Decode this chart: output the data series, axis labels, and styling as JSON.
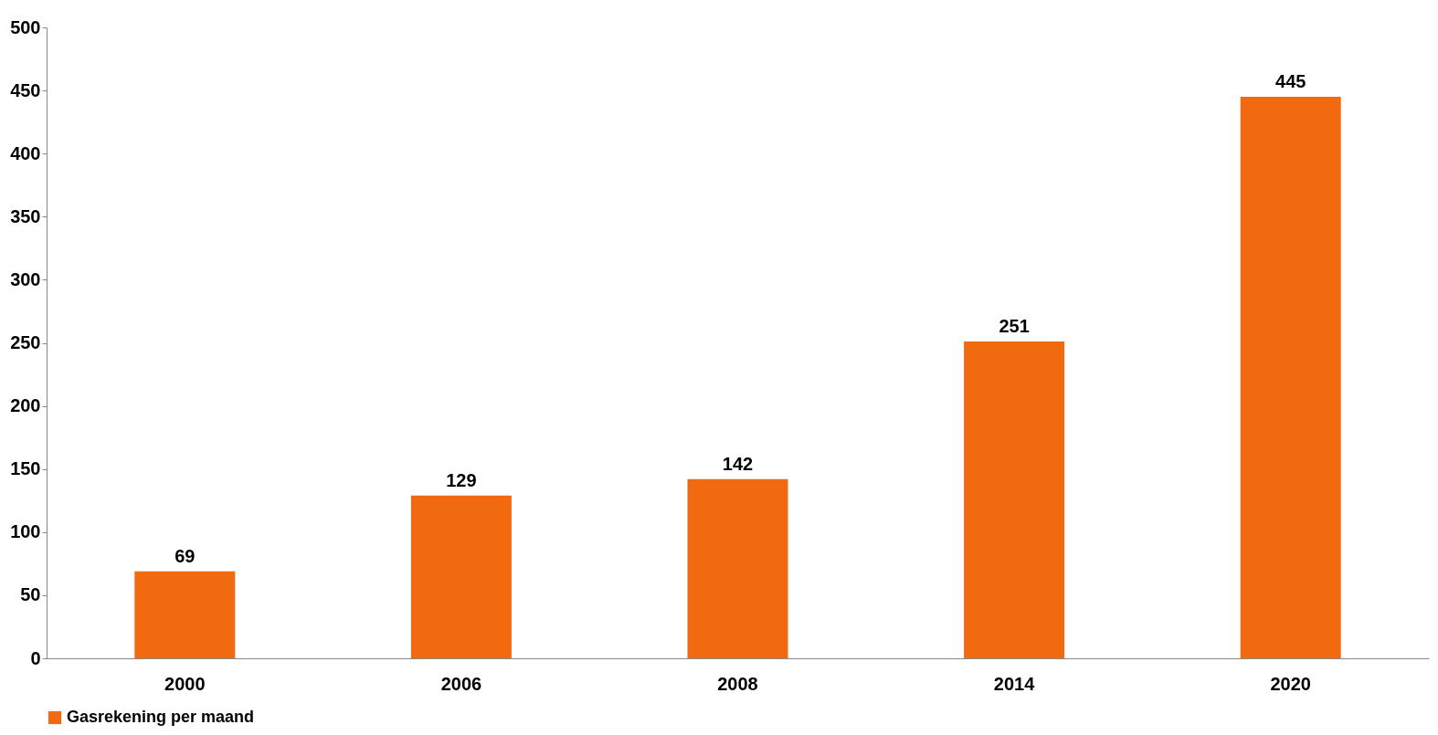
{
  "chart_data": {
    "type": "bar",
    "categories": [
      "2000",
      "2006",
      "2008",
      "2014",
      "2020"
    ],
    "series": [
      {
        "name": "Gasrekening per maand",
        "color": "#f26a10",
        "values": [
          69,
          129,
          142,
          251,
          445
        ]
      }
    ],
    "ylim": [
      0,
      500
    ],
    "yticks": [
      0,
      50,
      100,
      150,
      200,
      250,
      300,
      350,
      400,
      450,
      500
    ],
    "data_labels": true,
    "grid": false,
    "legend": "bottom"
  }
}
